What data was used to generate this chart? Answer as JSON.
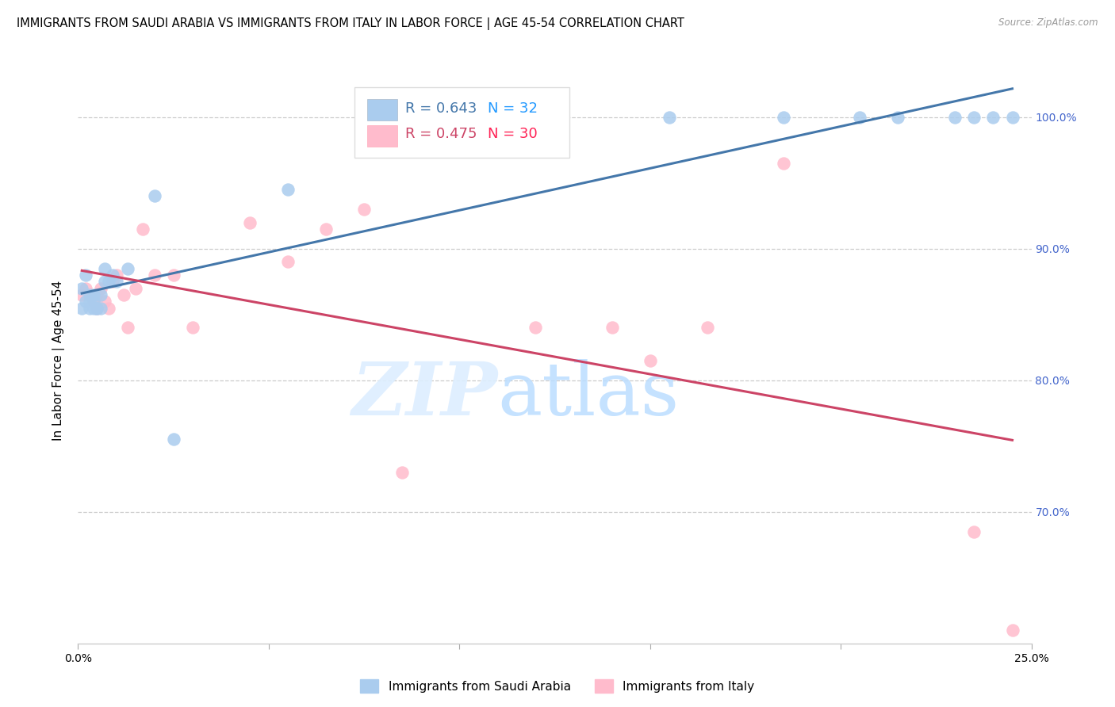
{
  "title": "IMMIGRANTS FROM SAUDI ARABIA VS IMMIGRANTS FROM ITALY IN LABOR FORCE | AGE 45-54 CORRELATION CHART",
  "source": "Source: ZipAtlas.com",
  "ylabel": "In Labor Force | Age 45-54",
  "xlim": [
    0.0,
    0.25
  ],
  "ylim": [
    0.6,
    1.03
  ],
  "yticks": [
    0.7,
    0.8,
    0.9,
    1.0
  ],
  "ytick_labels": [
    "70.0%",
    "80.0%",
    "90.0%",
    "100.0%"
  ],
  "xtick_positions": [
    0.0,
    0.05,
    0.1,
    0.15,
    0.2,
    0.25
  ],
  "xtick_labels": [
    "0.0%",
    "",
    "",
    "",
    "",
    "25.0%"
  ],
  "saudi_x": [
    0.001,
    0.001,
    0.002,
    0.002,
    0.003,
    0.003,
    0.003,
    0.004,
    0.004,
    0.004,
    0.005,
    0.005,
    0.006,
    0.006,
    0.007,
    0.007,
    0.008,
    0.009,
    0.01,
    0.013,
    0.02,
    0.025,
    0.055,
    0.085,
    0.155,
    0.185,
    0.205,
    0.215,
    0.23,
    0.235,
    0.24,
    0.245
  ],
  "saudi_y": [
    0.855,
    0.87,
    0.86,
    0.88,
    0.855,
    0.86,
    0.865,
    0.855,
    0.865,
    0.86,
    0.855,
    0.855,
    0.865,
    0.855,
    0.875,
    0.885,
    0.875,
    0.88,
    0.875,
    0.885,
    0.94,
    0.755,
    0.945,
    1.0,
    1.0,
    1.0,
    1.0,
    1.0,
    1.0,
    1.0,
    1.0,
    1.0
  ],
  "italy_x": [
    0.001,
    0.002,
    0.003,
    0.004,
    0.005,
    0.005,
    0.006,
    0.007,
    0.008,
    0.009,
    0.01,
    0.012,
    0.013,
    0.015,
    0.017,
    0.02,
    0.025,
    0.03,
    0.045,
    0.055,
    0.065,
    0.075,
    0.085,
    0.12,
    0.14,
    0.15,
    0.165,
    0.185,
    0.235,
    0.245
  ],
  "italy_y": [
    0.865,
    0.87,
    0.865,
    0.86,
    0.855,
    0.865,
    0.87,
    0.86,
    0.855,
    0.875,
    0.88,
    0.865,
    0.84,
    0.87,
    0.915,
    0.88,
    0.88,
    0.84,
    0.92,
    0.89,
    0.915,
    0.93,
    0.73,
    0.84,
    0.84,
    0.815,
    0.84,
    0.965,
    0.685,
    0.61
  ],
  "saudi_R": 0.643,
  "saudi_N": 32,
  "italy_R": 0.475,
  "italy_N": 30,
  "blue_dot_color": "#AACCEE",
  "blue_line_color": "#4477AA",
  "pink_dot_color": "#FFBBCC",
  "pink_line_color": "#CC4466",
  "right_tick_color": "#4466CC",
  "title_fontsize": 10.5,
  "legend_R_color_blue": "#4477AA",
  "legend_R_color_pink": "#CC4466",
  "legend_N_color_blue": "#2299FF",
  "legend_N_color_pink": "#FF2255",
  "background_color": "#FFFFFF",
  "grid_color": "#CCCCCC"
}
